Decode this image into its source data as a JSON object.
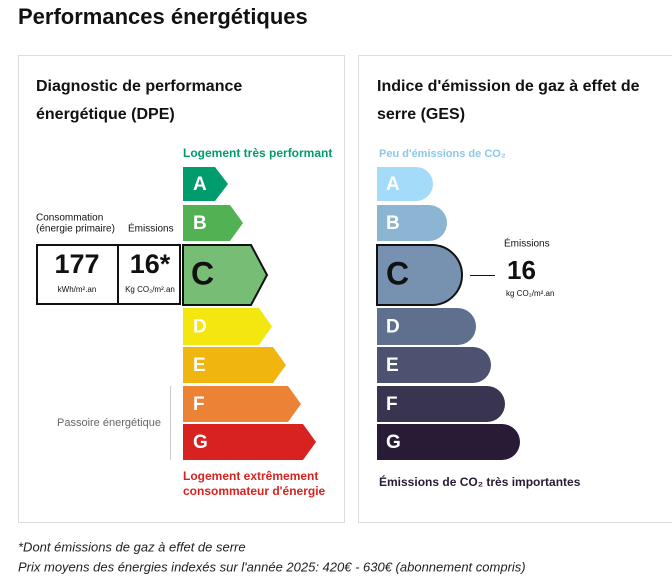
{
  "header": {
    "title": "Performances énergétiques"
  },
  "dpe": {
    "title": [
      "Diagnostic de performance",
      "énergétique (DPE)"
    ],
    "top_label": "Logement très performant",
    "bottom_label": [
      "Logement extrêmement",
      "consommateur d'énergie"
    ],
    "classes": [
      "A",
      "B",
      "C",
      "D",
      "E",
      "F",
      "G"
    ],
    "consumption_label": [
      "Consommation",
      "(énergie primaire)"
    ],
    "consumption_value": "177",
    "consumption_unit": "kWh/m².an",
    "emissions_label": "Émissions",
    "emissions_value": "16*",
    "emissions_unit": "Kg CO₂/m².an",
    "passoire_label": "Passoire énergétique"
  },
  "ges": {
    "title": [
      "Indice d'émission de gaz à effet de",
      "serre (GES)"
    ],
    "top_label": "Peu d'émissions de CO₂",
    "bottom_label": "Émissions de CO₂ très importantes",
    "classes": [
      "A",
      "B",
      "C",
      "D",
      "E",
      "F",
      "G"
    ],
    "emissions_label": "Émissions",
    "emissions_value": "16",
    "emissions_unit": "kg CO₂/m².an"
  },
  "footnotes": [
    "*Dont émissions de gaz à effet de serre",
    "Prix moyens des énergies indexés sur l'année 2025: 420€ - 630€ (abonnement compris)"
  ]
}
